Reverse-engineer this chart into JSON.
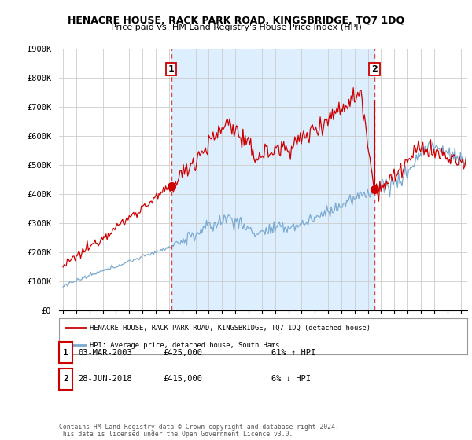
{
  "title": "HENACRE HOUSE, RACK PARK ROAD, KINGSBRIDGE, TQ7 1DQ",
  "subtitle": "Price paid vs. HM Land Registry's House Price Index (HPI)",
  "legend_line1": "HENACRE HOUSE, RACK PARK ROAD, KINGSBRIDGE, TQ7 1DQ (detached house)",
  "legend_line2": "HPI: Average price, detached house, South Hams",
  "table_row1": [
    "1",
    "03-MAR-2003",
    "£425,000",
    "61% ↑ HPI"
  ],
  "table_row2": [
    "2",
    "28-JUN-2018",
    "£415,000",
    "6% ↓ HPI"
  ],
  "footnote1": "Contains HM Land Registry data © Crown copyright and database right 2024.",
  "footnote2": "This data is licensed under the Open Government Licence v3.0.",
  "red_color": "#cc0000",
  "blue_color": "#7aaad0",
  "shade_color": "#ddeeff",
  "dashed_red": "#dd4444",
  "background_color": "#ffffff",
  "grid_color": "#cccccc",
  "ylim": [
    0,
    900000
  ],
  "yticks": [
    0,
    100000,
    200000,
    300000,
    400000,
    500000,
    600000,
    700000,
    800000,
    900000
  ],
  "ytick_labels": [
    "£0",
    "£100K",
    "£200K",
    "£300K",
    "£400K",
    "£500K",
    "£600K",
    "£700K",
    "£800K",
    "£900K"
  ],
  "xlim_start": 1994.7,
  "xlim_end": 2025.5,
  "marker1_x": 2003.17,
  "marker1_y": 425000,
  "marker2_x": 2018.49,
  "marker2_y": 415000,
  "marker2_peak_y": 720000,
  "sale1_vline_x": 2003.17,
  "sale2_vline_x": 2018.49
}
